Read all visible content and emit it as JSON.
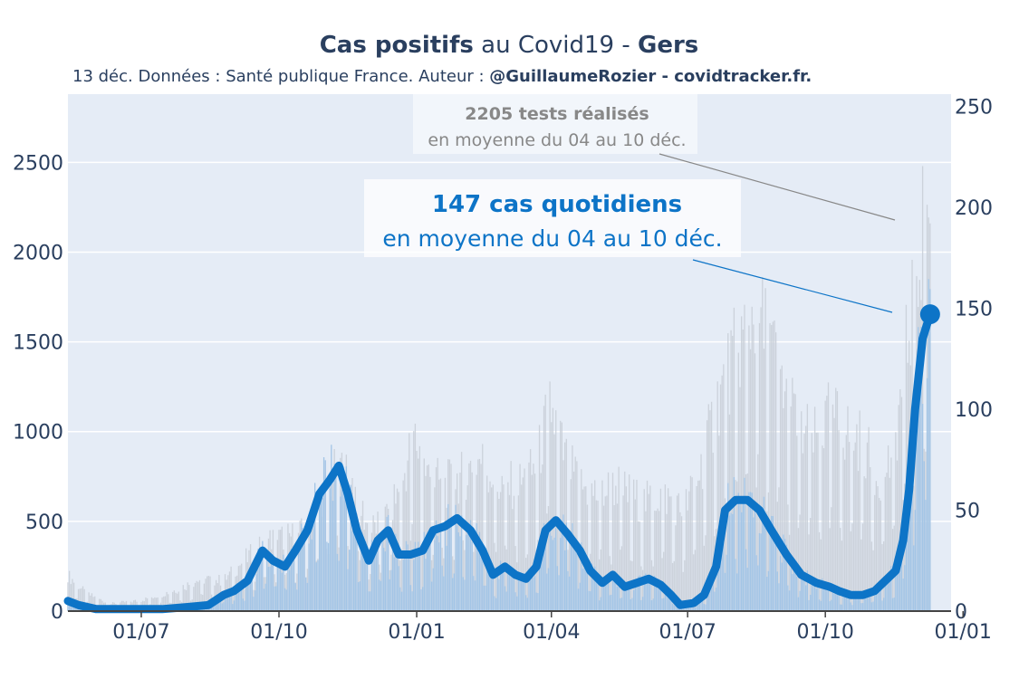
{
  "chart_data": {
    "type": "bar",
    "title": {
      "part1_bold": "Cas positifs",
      "part2": " au Covid19 - ",
      "part3_bold": "Gers"
    },
    "subtitle": {
      "plain": "13 déc. Données : Santé publique France. Auteur : ",
      "bold": "@GuillaumeRozier - covidtracker.fr."
    },
    "x_ticks": [
      "01/07",
      "01/10",
      "01/01",
      "01/04",
      "01/07",
      "01/10",
      "01/01"
    ],
    "y_left_ticks": [
      "0",
      "500",
      "1000",
      "1500",
      "2000",
      "2500"
    ],
    "y_right_ticks": [
      "0",
      "50",
      "100",
      "150",
      "200",
      "250"
    ],
    "y_left_range": [
      0,
      2880
    ],
    "y_right_range": [
      0,
      256
    ],
    "x_start": "2020-05-13",
    "x_range_dates": [
      "2020-05-13",
      "2021-12-24"
    ],
    "tests_series": {
      "axis": "left",
      "color": "#c9cfd8",
      "anchors": [
        [
          "2020-05-13",
          200
        ],
        [
          "2020-05-25",
          100
        ],
        [
          "2020-06-10",
          40
        ],
        [
          "2020-07-01",
          60
        ],
        [
          "2020-07-25",
          120
        ],
        [
          "2020-08-10",
          180
        ],
        [
          "2020-08-25",
          170
        ],
        [
          "2020-09-10",
          300
        ],
        [
          "2020-09-25",
          400
        ],
        [
          "2020-10-10",
          420
        ],
        [
          "2020-10-20",
          450
        ],
        [
          "2020-10-30",
          650
        ],
        [
          "2020-11-10",
          800
        ],
        [
          "2020-11-20",
          700
        ],
        [
          "2020-11-30",
          450
        ],
        [
          "2020-12-10",
          500
        ],
        [
          "2020-12-22",
          700
        ],
        [
          "2020-12-30",
          980
        ],
        [
          "2021-01-08",
          760
        ],
        [
          "2021-01-20",
          700
        ],
        [
          "2021-02-01",
          750
        ],
        [
          "2021-02-12",
          850
        ],
        [
          "2021-02-25",
          700
        ],
        [
          "2021-03-10",
          700
        ],
        [
          "2021-03-22",
          800
        ],
        [
          "2021-03-31",
          1150
        ],
        [
          "2021-04-10",
          850
        ],
        [
          "2021-04-20",
          700
        ],
        [
          "2021-05-01",
          650
        ],
        [
          "2021-05-15",
          700
        ],
        [
          "2021-06-01",
          600
        ],
        [
          "2021-06-15",
          650
        ],
        [
          "2021-06-28",
          550
        ],
        [
          "2021-07-10",
          800
        ],
        [
          "2021-07-22",
          1200
        ],
        [
          "2021-08-05",
          1500
        ],
        [
          "2021-08-15",
          1680
        ],
        [
          "2021-08-25",
          1500
        ],
        [
          "2021-09-05",
          1200
        ],
        [
          "2021-09-15",
          1000
        ],
        [
          "2021-09-25",
          950
        ],
        [
          "2021-10-05",
          1100
        ],
        [
          "2021-10-15",
          1000
        ],
        [
          "2021-10-25",
          950
        ],
        [
          "2021-11-05",
          750
        ],
        [
          "2021-11-15",
          850
        ],
        [
          "2021-11-22",
          1300
        ],
        [
          "2021-11-28",
          1700
        ],
        [
          "2021-12-04",
          2100
        ],
        [
          "2021-12-10",
          2205
        ]
      ]
    },
    "cases_series": {
      "name": "cas quotidiens",
      "axis": "right",
      "line_color": "#0d74c7",
      "bar_color": "#a3c5e6",
      "anchors": [
        [
          "2020-05-13",
          5
        ],
        [
          "2020-05-20",
          3
        ],
        [
          "2020-06-01",
          1
        ],
        [
          "2020-06-20",
          1
        ],
        [
          "2020-07-15",
          1
        ],
        [
          "2020-08-01",
          2
        ],
        [
          "2020-08-15",
          3
        ],
        [
          "2020-08-25",
          8
        ],
        [
          "2020-09-01",
          10
        ],
        [
          "2020-09-10",
          15
        ],
        [
          "2020-09-20",
          30
        ],
        [
          "2020-09-27",
          25
        ],
        [
          "2020-10-05",
          22
        ],
        [
          "2020-10-12",
          30
        ],
        [
          "2020-10-20",
          40
        ],
        [
          "2020-10-28",
          58
        ],
        [
          "2020-11-04",
          65
        ],
        [
          "2020-11-10",
          72
        ],
        [
          "2020-11-16",
          58
        ],
        [
          "2020-11-22",
          40
        ],
        [
          "2020-11-30",
          25
        ],
        [
          "2020-12-06",
          35
        ],
        [
          "2020-12-13",
          40
        ],
        [
          "2020-12-20",
          28
        ],
        [
          "2020-12-28",
          28
        ],
        [
          "2021-01-05",
          30
        ],
        [
          "2021-01-12",
          40
        ],
        [
          "2021-01-20",
          42
        ],
        [
          "2021-01-28",
          46
        ],
        [
          "2021-02-06",
          40
        ],
        [
          "2021-02-14",
          30
        ],
        [
          "2021-02-21",
          18
        ],
        [
          "2021-03-01",
          22
        ],
        [
          "2021-03-08",
          18
        ],
        [
          "2021-03-15",
          16
        ],
        [
          "2021-03-22",
          22
        ],
        [
          "2021-03-28",
          40
        ],
        [
          "2021-04-04",
          45
        ],
        [
          "2021-04-12",
          38
        ],
        [
          "2021-04-20",
          30
        ],
        [
          "2021-04-27",
          20
        ],
        [
          "2021-05-05",
          14
        ],
        [
          "2021-05-12",
          18
        ],
        [
          "2021-05-20",
          12
        ],
        [
          "2021-05-28",
          14
        ],
        [
          "2021-06-05",
          16
        ],
        [
          "2021-06-13",
          13
        ],
        [
          "2021-06-20",
          8
        ],
        [
          "2021-06-26",
          3
        ],
        [
          "2021-07-05",
          4
        ],
        [
          "2021-07-12",
          8
        ],
        [
          "2021-07-20",
          22
        ],
        [
          "2021-07-26",
          50
        ],
        [
          "2021-08-02",
          55
        ],
        [
          "2021-08-10",
          55
        ],
        [
          "2021-08-18",
          50
        ],
        [
          "2021-08-26",
          40
        ],
        [
          "2021-09-05",
          28
        ],
        [
          "2021-09-15",
          18
        ],
        [
          "2021-09-25",
          14
        ],
        [
          "2021-10-04",
          12
        ],
        [
          "2021-10-10",
          10
        ],
        [
          "2021-10-18",
          8
        ],
        [
          "2021-10-26",
          8
        ],
        [
          "2021-11-03",
          10
        ],
        [
          "2021-11-10",
          15
        ],
        [
          "2021-11-17",
          20
        ],
        [
          "2021-11-22",
          35
        ],
        [
          "2021-11-26",
          60
        ],
        [
          "2021-11-30",
          100
        ],
        [
          "2021-12-05",
          135
        ],
        [
          "2021-12-10",
          147
        ]
      ]
    },
    "annotations": {
      "tests": {
        "bold": "2205 tests réalisés",
        "plain": "en moyenne du 04 au 10 déc.",
        "color": "#888888"
      },
      "cases": {
        "bold": "147 cas quotidiens",
        "plain": "en moyenne du 04 au 10 déc.",
        "color": "#0d74c7"
      }
    }
  }
}
